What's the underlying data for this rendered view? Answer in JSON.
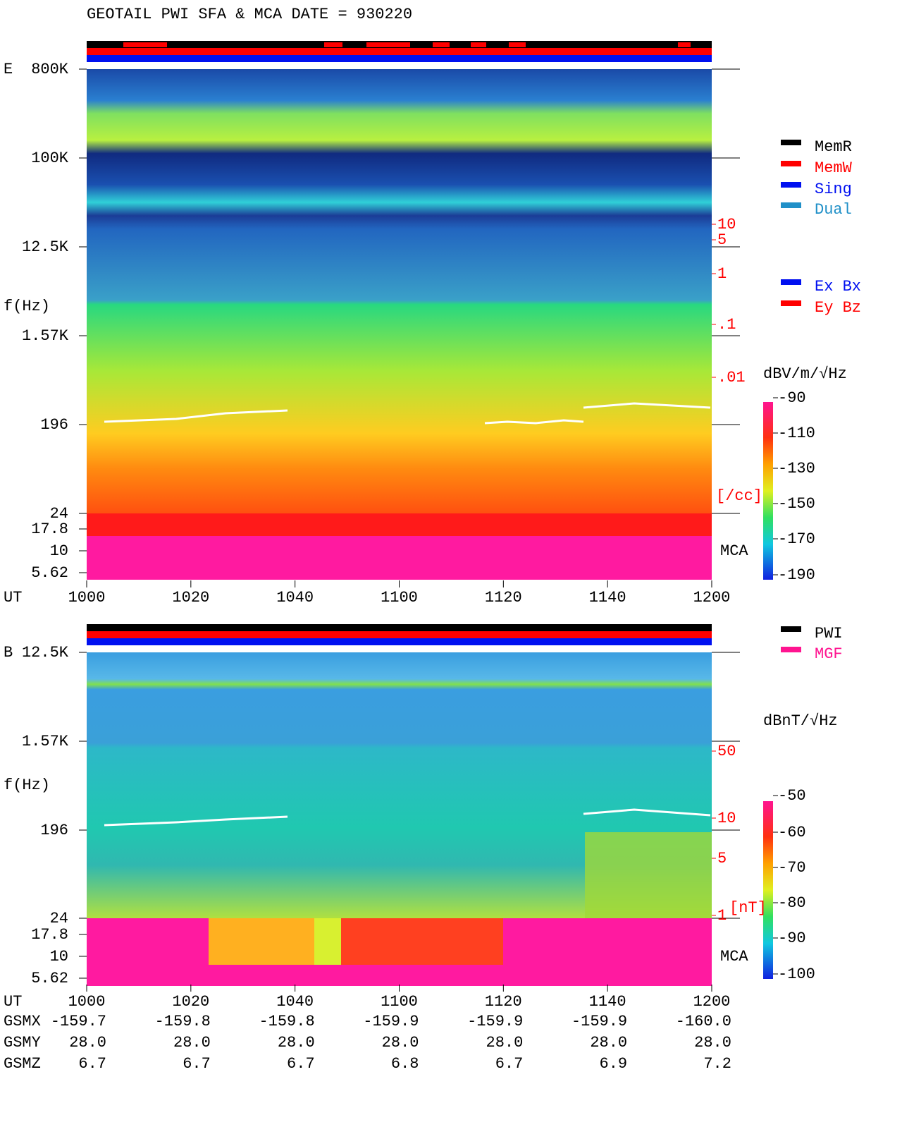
{
  "title": "GEOTAIL  PWI SFA & MCA   DATE = 930220",
  "panel_e": {
    "label": "E",
    "y_label": "f(Hz)",
    "y_ticks": [
      "800K",
      "100K",
      "12.5K",
      "1.57K",
      "196",
      "24",
      "17.8",
      "10",
      "5.62"
    ],
    "right_ticks": [
      "10",
      "5",
      "1",
      ".1",
      ".01"
    ],
    "right_unit": "[/cc]",
    "mca": "MCA",
    "x_label": "UT",
    "x_ticks": [
      "1000",
      "1020",
      "1040",
      "1100",
      "1120",
      "1140",
      "1200"
    ],
    "colorbar_unit": "dBV/m/√Hz",
    "colorbar_ticks": [
      "-90",
      "-110",
      "-130",
      "-150",
      "-170",
      "-190"
    ],
    "legend": [
      "MemR",
      "MemW",
      "Sing",
      "Dual"
    ],
    "components": [
      "Ex Bx",
      "Ey Bz"
    ]
  },
  "panel_b": {
    "label": "B",
    "y_label": "f(Hz)",
    "y_ticks": [
      "12.5K",
      "1.57K",
      "196",
      "24",
      "17.8",
      "10",
      "5.62"
    ],
    "right_ticks": [
      "50",
      "10",
      "5",
      "1"
    ],
    "right_unit": "[nT]",
    "mca": "MCA",
    "x_label": "UT",
    "x_ticks": [
      "1000",
      "1020",
      "1040",
      "1100",
      "1120",
      "1140",
      "1200"
    ],
    "colorbar_unit": "dBnT/√Hz",
    "colorbar_ticks": [
      "-50",
      "-60",
      "-70",
      "-80",
      "-90",
      "-100"
    ],
    "legend": [
      "PWI",
      "MGF"
    ]
  },
  "orbit": [
    {
      "label": "GSMX",
      "values": [
        "-159.7",
        "-159.8",
        "-159.8",
        "-159.9",
        "-159.9",
        "-159.9",
        "-160.0"
      ]
    },
    {
      "label": "GSMY",
      "values": [
        "28.0",
        "28.0",
        "28.0",
        "28.0",
        "28.0",
        "28.0",
        "28.0"
      ]
    },
    {
      "label": "GSMZ",
      "values": [
        "6.7",
        "6.7",
        "6.7",
        "6.8",
        "6.7",
        "6.9",
        "7.2"
      ]
    }
  ]
}
